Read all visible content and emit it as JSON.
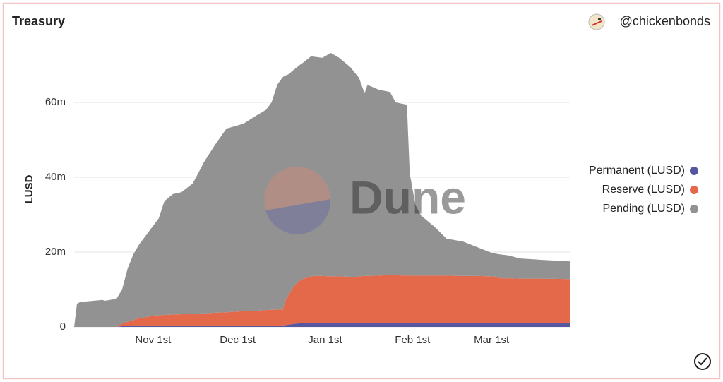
{
  "chart_data": {
    "type": "stacked-area",
    "title": "Treasury",
    "author": "@chickenbonds",
    "watermark": "Dune",
    "y_label": "LUSD",
    "legend": "right",
    "grid": true,
    "x": [
      0,
      1,
      2,
      4,
      10,
      11,
      15,
      17,
      19,
      21,
      22,
      23,
      26,
      28,
      30,
      32,
      35,
      38,
      42,
      45,
      46,
      50,
      54,
      60,
      64,
      68,
      70,
      72,
      74,
      75,
      76,
      78,
      80,
      81,
      84,
      85,
      88,
      91,
      94,
      98,
      100,
      101,
      103,
      104,
      108,
      110,
      112,
      114,
      118,
      119,
      121,
      123,
      128,
      132,
      138,
      143,
      148,
      150,
      151,
      154,
      158,
      166,
      176
    ],
    "xlim": [
      0,
      176
    ],
    "xticks": [
      {
        "value": 28,
        "label": "Nov 1st"
      },
      {
        "value": 58,
        "label": "Dec 1st"
      },
      {
        "value": 89,
        "label": "Jan 1st"
      },
      {
        "value": 120,
        "label": "Feb 1st"
      },
      {
        "value": 148,
        "label": "Mar 1st"
      }
    ],
    "ylim": [
      0,
      80000000
    ],
    "yticks": [
      0,
      {
        "value": 20000000,
        "label": "20m"
      },
      {
        "value": 40000000,
        "label": "40m"
      },
      {
        "value": 60000000,
        "label": "60m"
      }
    ],
    "series": [
      {
        "name": "Permanent (LUSD)",
        "color": "#55589f",
        "values": [
          0,
          0,
          0,
          0,
          0,
          0,
          0,
          200000,
          200000,
          200000,
          200000,
          200000,
          200000,
          200000,
          200000,
          200000,
          200000,
          200000,
          200000,
          300000,
          300000,
          300000,
          300000,
          300000,
          300000,
          300000,
          300000,
          300000,
          400000,
          500000,
          600000,
          800000,
          1000000,
          1000000,
          1000000,
          1000000,
          1000000,
          1000000,
          1000000,
          1000000,
          1000000,
          1000000,
          1000000,
          1000000,
          1000000,
          1000000,
          1000000,
          1000000,
          1000000,
          1000000,
          1000000,
          1000000,
          1000000,
          1000000,
          1000000,
          1000000,
          1000000,
          1000000,
          1000000,
          1000000,
          1000000,
          1000000,
          1000000
        ]
      },
      {
        "name": "Reserve (LUSD)",
        "color": "#e4694a",
        "values": [
          0,
          0,
          0,
          0,
          0,
          0,
          0,
          700000,
          1200000,
          1600000,
          1900000,
          2100000,
          2500000,
          2800000,
          2900000,
          3000000,
          3100000,
          3200000,
          3300000,
          3300000,
          3300000,
          3500000,
          3600000,
          3900000,
          4000000,
          4200000,
          4300000,
          4300000,
          4300000,
          6700000,
          7900000,
          10200000,
          11300000,
          11800000,
          12500000,
          12600000,
          12600000,
          12500000,
          12500000,
          12400000,
          12400000,
          12500000,
          12600000,
          12600000,
          12700000,
          12800000,
          12800000,
          12800000,
          12700000,
          12700000,
          12700000,
          12700000,
          12700000,
          12700000,
          12600000,
          12600000,
          12500000,
          12400000,
          12000000,
          12000000,
          11900000,
          11900000,
          11800000
        ]
      },
      {
        "name": "Pending (LUSD)",
        "color": "#929292",
        "values": [
          0,
          6200000,
          6600000,
          6800000,
          7200000,
          7000000,
          7500000,
          9100000,
          14300000,
          17600000,
          18600000,
          19700000,
          22300000,
          24000000,
          25900000,
          30400000,
          32200000,
          32600000,
          34800000,
          38900000,
          40400000,
          44900000,
          49100000,
          50100000,
          51900000,
          53500000,
          55400000,
          60100000,
          62100000,
          60000000,
          59000000,
          57800000,
          57700000,
          57700000,
          58800000,
          58600000,
          58300000,
          59700000,
          58400000,
          56000000,
          54100000,
          53100000,
          48800000,
          51100000,
          49700000,
          49300000,
          49000000,
          46200000,
          45700000,
          27400000,
          18900000,
          16100000,
          12900000,
          9900000,
          9200000,
          7700000,
          6300000,
          6100000,
          6400000,
          6100000,
          5400000,
          5000000,
          4700000
        ]
      }
    ]
  }
}
